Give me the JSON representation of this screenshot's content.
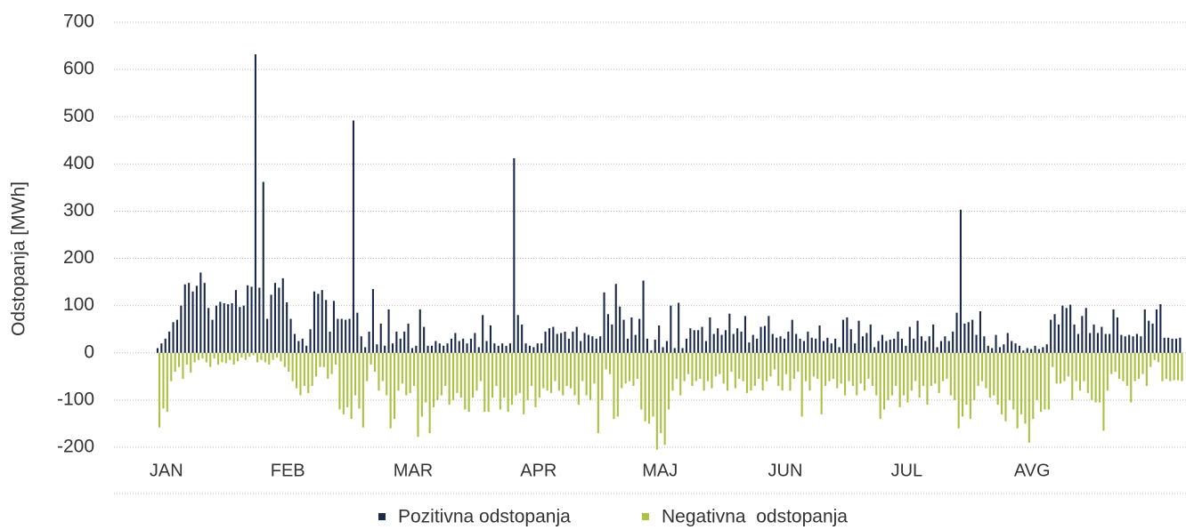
{
  "chart_data": {
    "type": "bar",
    "y_label": "Odstopanja [MWh]",
    "categories": [
      null,
      null,
      "JAN",
      null,
      null,
      null,
      null,
      null,
      null,
      null,
      null,
      null,
      null,
      null,
      null,
      null,
      null,
      null,
      null,
      null,
      null,
      null,
      null,
      null,
      null,
      null,
      null,
      null,
      null,
      null,
      null,
      null,
      null,
      "FEB",
      null,
      null,
      null,
      null,
      null,
      null,
      null,
      null,
      null,
      null,
      null,
      null,
      null,
      null,
      null,
      null,
      null,
      null,
      null,
      null,
      null,
      null,
      null,
      null,
      null,
      null,
      null,
      null,
      null,
      null,
      null,
      "MAR",
      null,
      null,
      null,
      null,
      null,
      null,
      null,
      null,
      null,
      null,
      null,
      null,
      null,
      null,
      null,
      null,
      null,
      null,
      null,
      null,
      null,
      null,
      null,
      null,
      null,
      null,
      null,
      null,
      null,
      null,
      null,
      "APR",
      null,
      null,
      null,
      null,
      null,
      null,
      null,
      null,
      null,
      null,
      null,
      null,
      null,
      null,
      null,
      null,
      null,
      null,
      null,
      null,
      null,
      null,
      null,
      null,
      null,
      null,
      null,
      null,
      null,
      null,
      "MAJ",
      null,
      null,
      null,
      null,
      null,
      null,
      null,
      null,
      null,
      null,
      null,
      null,
      null,
      null,
      null,
      null,
      null,
      null,
      null,
      null,
      null,
      null,
      null,
      null,
      null,
      null,
      null,
      null,
      null,
      null,
      null,
      "JUN",
      null,
      null,
      null,
      null,
      null,
      null,
      null,
      null,
      null,
      null,
      null,
      null,
      null,
      null,
      null,
      null,
      null,
      null,
      null,
      null,
      null,
      null,
      null,
      null,
      null,
      null,
      null,
      null,
      null,
      null,
      "JUL",
      null,
      null,
      null,
      null,
      null,
      null,
      null,
      null,
      null,
      null,
      null,
      null,
      null,
      null,
      null,
      null,
      null,
      null,
      null,
      null,
      null,
      null,
      null,
      null,
      null,
      null,
      null,
      null,
      null,
      null,
      null,
      "AVG",
      null,
      null,
      null,
      null,
      null,
      null,
      null,
      null,
      null,
      null,
      null,
      null,
      null,
      null,
      null,
      null,
      null,
      null,
      null,
      null,
      null,
      null,
      null,
      null,
      null,
      null,
      null,
      null,
      null,
      null,
      null,
      null,
      null,
      null,
      null,
      null,
      null,
      null
    ],
    "series": [
      {
        "name": "Pozitivna odstopanja",
        "color": "#1b2a4a",
        "values": [
          10,
          20,
          30,
          45,
          65,
          70,
          100,
          145,
          148,
          130,
          142,
          170,
          148,
          95,
          70,
          100,
          108,
          105,
          103,
          105,
          133,
          97,
          100,
          143,
          140,
          632,
          138,
          362,
          72,
          123,
          148,
          138,
          158,
          107,
          72,
          40,
          25,
          30,
          15,
          50,
          130,
          125,
          133,
          112,
          45,
          110,
          72,
          72,
          70,
          72,
          492,
          85,
          35,
          12,
          45,
          135,
          18,
          62,
          15,
          92,
          20,
          45,
          30,
          45,
          62,
          10,
          15,
          92,
          55,
          15,
          15,
          25,
          20,
          15,
          20,
          30,
          42,
          25,
          30,
          20,
          30,
          42,
          12,
          80,
          25,
          58,
          20,
          15,
          20,
          15,
          20,
          412,
          80,
          60,
          20,
          15,
          12,
          20,
          20,
          45,
          52,
          55,
          40,
          42,
          45,
          30,
          45,
          55,
          25,
          42,
          38,
          35,
          30,
          35,
          128,
          82,
          60,
          146,
          98,
          70,
          30,
          75,
          38,
          72,
          153,
          30,
          5,
          28,
          58,
          12,
          25,
          100,
          10,
          106,
          10,
          30,
          52,
          48,
          48,
          55,
          25,
          75,
          40,
          52,
          38,
          48,
          83,
          40,
          52,
          45,
          78,
          22,
          38,
          30,
          55,
          57,
          78,
          40,
          32,
          35,
          30,
          45,
          70,
          40,
          30,
          25,
          45,
          32,
          30,
          58,
          25,
          32,
          20,
          30,
          12,
          70,
          75,
          50,
          20,
          68,
          35,
          42,
          60,
          12,
          25,
          38,
          25,
          28,
          30,
          45,
          30,
          15,
          55,
          30,
          68,
          35,
          25,
          35,
          60,
          12,
          25,
          35,
          25,
          45,
          85,
          303,
          62,
          65,
          70,
          38,
          88,
          35,
          15,
          10,
          38,
          12,
          18,
          42,
          25,
          20,
          15,
          5,
          10,
          8,
          15,
          8,
          12,
          18,
          70,
          82,
          60,
          100,
          95,
          102,
          60,
          40,
          78,
          95,
          42,
          60,
          42,
          55,
          40,
          40,
          92,
          75,
          38,
          35,
          38,
          35,
          40,
          35,
          92,
          68,
          62,
          92,
          103,
          32,
          32,
          30,
          30,
          32
        ]
      },
      {
        "name": "Negativna  odstopanja",
        "color": "#a9c23f",
        "values": [
          -158,
          -118,
          -125,
          -60,
          -40,
          -30,
          -55,
          -25,
          -42,
          -20,
          -15,
          -12,
          -20,
          -30,
          -12,
          -25,
          -20,
          -22,
          -15,
          -25,
          -18,
          -10,
          -15,
          -8,
          -5,
          -20,
          -15,
          -20,
          -25,
          -15,
          -10,
          -18,
          -30,
          -40,
          -60,
          -75,
          -90,
          -70,
          -85,
          -70,
          -50,
          -30,
          -30,
          -55,
          -45,
          -25,
          -120,
          -130,
          -115,
          -140,
          -90,
          -118,
          -158,
          -60,
          -25,
          -40,
          -80,
          -60,
          -90,
          -160,
          -140,
          -80,
          -65,
          -90,
          -85,
          -70,
          -178,
          -135,
          -105,
          -170,
          -115,
          -100,
          -90,
          -70,
          -110,
          -100,
          -85,
          -95,
          -120,
          -125,
          -95,
          -80,
          -60,
          -125,
          -125,
          -95,
          -70,
          -120,
          -95,
          -125,
          -110,
          -90,
          -85,
          -130,
          -100,
          -70,
          -115,
          -95,
          -75,
          -80,
          -85,
          -60,
          -80,
          -90,
          -70,
          -75,
          -90,
          -110,
          -60,
          -90,
          -100,
          -65,
          -170,
          -100,
          -35,
          -45,
          -140,
          -135,
          -75,
          -65,
          -60,
          -70,
          -55,
          -120,
          -145,
          -150,
          -135,
          -205,
          -170,
          -195,
          -120,
          -80,
          -55,
          -90,
          -60,
          -45,
          -70,
          -60,
          -55,
          -80,
          -60,
          -75,
          -50,
          -45,
          -65,
          -80,
          -40,
          -75,
          -55,
          -60,
          -85,
          -80,
          -70,
          -55,
          -80,
          -60,
          -50,
          -35,
          -70,
          -80,
          -45,
          -80,
          -55,
          -40,
          -135,
          -60,
          -80,
          -50,
          -55,
          -130,
          -70,
          -60,
          -55,
          -75,
          -65,
          -90,
          -60,
          -70,
          -90,
          -65,
          -80,
          -55,
          -70,
          -90,
          -140,
          -120,
          -100,
          -90,
          -70,
          -115,
          -90,
          -105,
          -80,
          -60,
          -95,
          -70,
          -110,
          -70,
          -65,
          -85,
          -60,
          -55,
          -90,
          -100,
          -160,
          -135,
          -110,
          -140,
          -100,
          -70,
          -60,
          -75,
          -95,
          -90,
          -110,
          -130,
          -145,
          -100,
          -120,
          -160,
          -130,
          -150,
          -190,
          -140,
          -100,
          -125,
          -120,
          -120,
          -30,
          -65,
          -65,
          -60,
          -50,
          -100,
          -60,
          -80,
          -60,
          -85,
          -100,
          -105,
          -105,
          -165,
          -80,
          -45,
          -40,
          -55,
          -60,
          -70,
          -105,
          -60,
          -55,
          -45,
          -70,
          -30,
          -15,
          -20,
          -60,
          -55,
          -60,
          -58,
          -58,
          -60
        ]
      }
    ],
    "ylim": [
      -200,
      700
    ],
    "yticks": [
      -200,
      -100,
      0,
      100,
      200,
      300,
      400,
      500,
      600,
      700
    ],
    "grid": true,
    "legend": "bottom"
  }
}
